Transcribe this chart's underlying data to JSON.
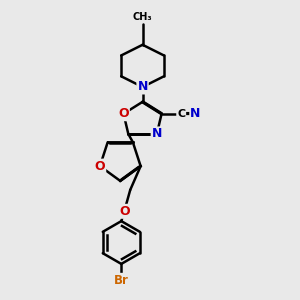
{
  "background_color": "#e9e9e9",
  "bond_color": "#000000",
  "bond_width": 1.8,
  "atom_colors": {
    "N": "#0000cc",
    "O": "#cc0000",
    "Br": "#cc6600",
    "C": "#000000"
  }
}
